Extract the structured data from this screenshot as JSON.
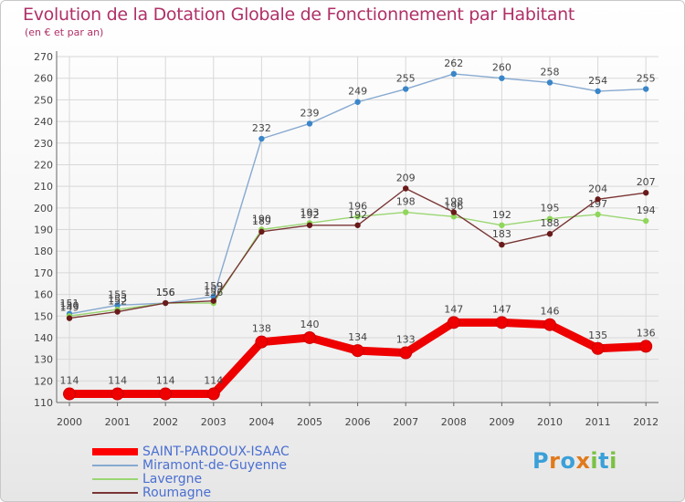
{
  "title": "Evolution de la Dotation Globale de Fonctionnement par Habitant",
  "subtitle": "(en € et par an)",
  "logo": {
    "text": "Proxiti",
    "letters": [
      "P",
      "r",
      "o",
      "x",
      "i",
      "t",
      "i"
    ],
    "colors": [
      "#3aa0d8",
      "#e07a1c",
      "#3aa0d8",
      "#e07a1c",
      "#7ac143",
      "#3aa0d8",
      "#7ac143"
    ]
  },
  "chart_data": {
    "type": "line",
    "title": "Evolution de la Dotation Globale de Fonctionnement par Habitant",
    "subtitle": "(en € et par an)",
    "xlabel": "",
    "ylabel": "",
    "x": [
      "2000",
      "2001",
      "2002",
      "2003",
      "2004",
      "2005",
      "2006",
      "2007",
      "2008",
      "2009",
      "2010",
      "2011",
      "2012"
    ],
    "ylim": [
      110,
      270
    ],
    "yticks": [
      110,
      120,
      130,
      140,
      150,
      160,
      170,
      180,
      190,
      200,
      210,
      220,
      230,
      240,
      250,
      260,
      270
    ],
    "grid": true,
    "legend_position": "bottom-left",
    "series": [
      {
        "name": "SAINT-PARDOUX-ISAAC",
        "color": "#ff0000",
        "dot_color": "#ee0000",
        "line_color": "#ee0000",
        "emphasis": true,
        "values": [
          114,
          114,
          114,
          114,
          138,
          140,
          134,
          133,
          147,
          147,
          146,
          135,
          136
        ],
        "labels": [
          "114",
          "114",
          "114",
          "114",
          "138",
          "140",
          "134",
          "133",
          "147",
          "147",
          "146",
          "135",
          "136"
        ]
      },
      {
        "name": "Miramont-de-Guyenne",
        "color": "#87a9d0",
        "dot_color": "#3a86c8",
        "line_color": "#87a9d0",
        "emphasis": false,
        "values": [
          151,
          155,
          156,
          159,
          232,
          239,
          249,
          255,
          262,
          260,
          258,
          254,
          255
        ],
        "labels": [
          "151",
          "155",
          "156",
          "159",
          "232",
          "239",
          "249",
          "255",
          "262",
          "260",
          "258",
          "254",
          "255"
        ]
      },
      {
        "name": "Lavergne",
        "color": "#9ad672",
        "dot_color": "#8fd65a",
        "line_color": "#9ad672",
        "emphasis": false,
        "values": [
          150,
          153,
          156,
          156,
          190,
          193,
          196,
          198,
          196,
          192,
          195,
          197,
          194
        ],
        "labels": [
          "150",
          "153",
          "156",
          "156",
          "190",
          "193",
          "196",
          "198",
          "196",
          "192",
          "195",
          "197",
          "194"
        ]
      },
      {
        "name": "Roumagne",
        "color": "#7a3535",
        "dot_color": "#6a1a1a",
        "line_color": "#7a3535",
        "emphasis": false,
        "values": [
          149,
          152,
          156,
          157,
          189,
          192,
          192,
          209,
          198,
          183,
          188,
          204,
          207
        ],
        "labels": [
          "149",
          "152",
          "156",
          "157",
          "189",
          "192",
          "192",
          "209",
          "198",
          "183",
          "188",
          "204",
          "207"
        ]
      }
    ]
  }
}
